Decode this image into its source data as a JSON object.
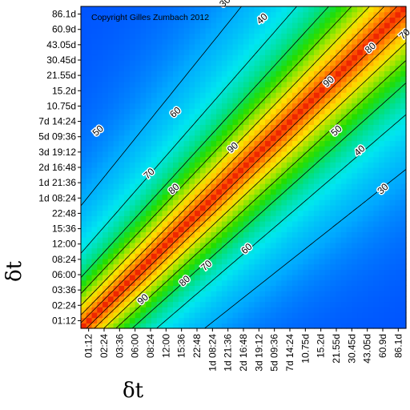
{
  "chart_data": {
    "type": "heatmap",
    "title": "",
    "annotation": "Copyright Gilles Zumbach 2012",
    "xlabel": "δt",
    "ylabel": "δt",
    "ticks": [
      "01:12",
      "02:24",
      "03:36",
      "06:00",
      "08:24",
      "12:00",
      "15:36",
      "22:48",
      "1d 08:24",
      "1d 21:36",
      "2d 16:48",
      "3d 19:12",
      "5d 09:36",
      "7d 14:24",
      "10.75d",
      "15.2d",
      "21.55d",
      "30.45d",
      "43.05d",
      "60.9d",
      "86.1d"
    ],
    "colorscale": [
      "#0033ff",
      "#00a8ff",
      "#00e6f0",
      "#00e08a",
      "#22dd00",
      "#a0e600",
      "#ffe000",
      "#ffa000",
      "#ff5a00",
      "#e81800"
    ],
    "value_range": [
      20,
      100
    ],
    "contour_levels": [
      30,
      40,
      50,
      60,
      70,
      80,
      90
    ],
    "contour_labels": [
      {
        "text": "30",
        "x": 8.8,
        "y": 20.8
      },
      {
        "text": "40",
        "x": 11.2,
        "y": 19.7
      },
      {
        "text": "50",
        "x": 0.6,
        "y": 12.4
      },
      {
        "text": "60",
        "x": 5.6,
        "y": 13.6
      },
      {
        "text": "70",
        "x": 3.9,
        "y": 9.6
      },
      {
        "text": "80",
        "x": 5.5,
        "y": 8.6
      },
      {
        "text": "90",
        "x": 9.3,
        "y": 11.3
      },
      {
        "text": "90",
        "x": 15.5,
        "y": 15.6
      },
      {
        "text": "80",
        "x": 18.2,
        "y": 17.8
      },
      {
        "text": "70",
        "x": 20.4,
        "y": 18.7
      },
      {
        "text": "50",
        "x": 16.0,
        "y": 12.4
      },
      {
        "text": "40",
        "x": 17.5,
        "y": 11.1
      },
      {
        "text": "30",
        "x": 19.0,
        "y": 8.6
      },
      {
        "text": "90",
        "x": 3.5,
        "y": 1.4
      },
      {
        "text": "80",
        "x": 6.2,
        "y": 2.6
      },
      {
        "text": "70",
        "x": 7.6,
        "y": 3.6
      },
      {
        "text": "60",
        "x": 10.2,
        "y": 4.7
      }
    ]
  }
}
